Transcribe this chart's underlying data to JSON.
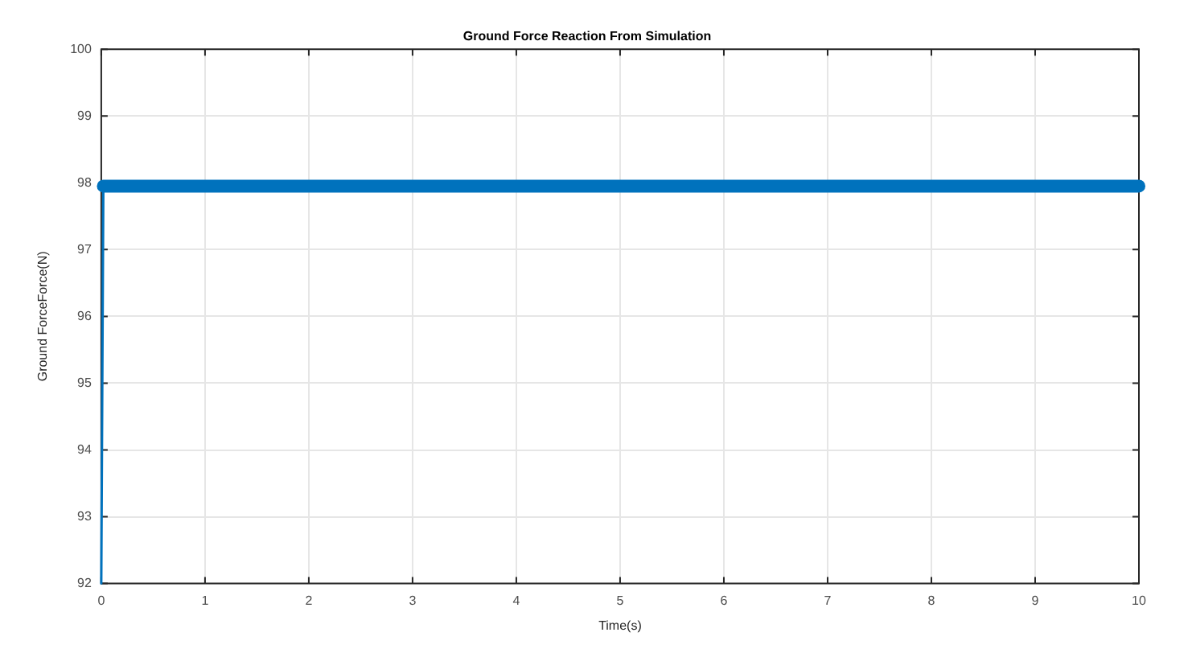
{
  "chart_data": {
    "type": "line",
    "title": "Ground Force Reaction From Simulation",
    "xlabel": "Time(s)",
    "ylabel": "Ground ForceForce(N)",
    "x": [
      0,
      0.02,
      10
    ],
    "series": [
      {
        "color": "#0072bd",
        "values": [
          92,
          97.95,
          97.95
        ]
      }
    ],
    "xlim": [
      0,
      10
    ],
    "xticks": [
      0,
      1,
      2,
      3,
      4,
      5,
      6,
      7,
      8,
      9,
      10
    ],
    "ylim": [
      92,
      100
    ],
    "yticks": [
      92,
      93,
      94,
      95,
      96,
      97,
      98,
      99,
      100
    ],
    "grid": true,
    "legend": false,
    "marker": "none",
    "line_style": "solid"
  }
}
